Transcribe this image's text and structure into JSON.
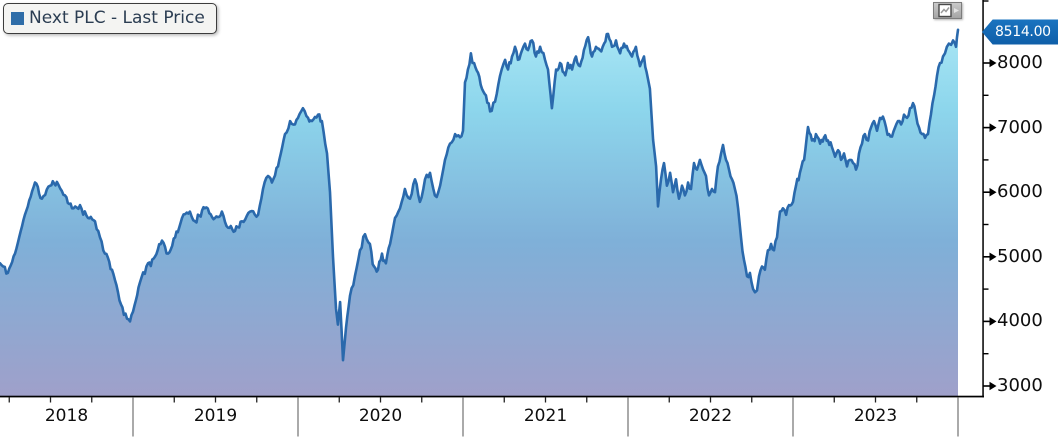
{
  "legend": {
    "series_label": "Next PLC - Last Price"
  },
  "toolbar": {
    "button": "chart-options"
  },
  "last_price_badge": {
    "value": "8514.00"
  },
  "colors": {
    "line": "#2a69ac",
    "fill_top": "#a9e6f5",
    "fill_upper": "#8dd6ec",
    "fill_mid": "#7fb0d8",
    "fill_bottom": "#9fa0ca",
    "badge_bg": "#1166b2",
    "legend_marker": "#2f6da8",
    "axis": "#000000"
  },
  "y_axis": {
    "major_ticks": [
      8000,
      7000,
      6000,
      5000,
      4000,
      3000
    ],
    "labels": [
      "8000",
      "7000",
      "6000",
      "5000",
      "4000",
      "3000"
    ],
    "minor_ticks": [
      9000,
      8500,
      7500,
      6500,
      5500,
      4500,
      3500
    ],
    "side": "right"
  },
  "x_axis": {
    "year_labels": [
      "2018",
      "2019",
      "2020",
      "2021",
      "2022",
      "2023"
    ],
    "minor_ticks_per_year": 4
  },
  "chart_data": {
    "type": "area",
    "title": "Next PLC - Last Price",
    "legend_position": "top-left",
    "grid": false,
    "ylim": [
      2860,
      8980
    ],
    "xlim_decimal_years": [
      2018.194,
      2024.0
    ],
    "last_price": 8514.0,
    "series": [
      {
        "name": "Next PLC - Last Price",
        "points_decimal_year_vs_pence": [
          [
            2018.194,
            4900
          ],
          [
            2018.242,
            4750
          ],
          [
            2018.285,
            5050
          ],
          [
            2018.345,
            5650
          ],
          [
            2018.406,
            6150
          ],
          [
            2018.448,
            5900
          ],
          [
            2018.497,
            6100
          ],
          [
            2018.539,
            6160
          ],
          [
            2018.588,
            5950
          ],
          [
            2018.63,
            5750
          ],
          [
            2018.679,
            5800
          ],
          [
            2018.727,
            5600
          ],
          [
            2018.77,
            5550
          ],
          [
            2018.8,
            5300
          ],
          [
            2018.83,
            5050
          ],
          [
            2018.873,
            4800
          ],
          [
            2018.909,
            4450
          ],
          [
            2018.945,
            4100
          ],
          [
            2018.982,
            4000
          ],
          [
            2019.0,
            4150
          ],
          [
            2019.042,
            4600
          ],
          [
            2019.091,
            4900
          ],
          [
            2019.133,
            5000
          ],
          [
            2019.176,
            5250
          ],
          [
            2019.212,
            5050
          ],
          [
            2019.255,
            5300
          ],
          [
            2019.297,
            5600
          ],
          [
            2019.345,
            5700
          ],
          [
            2019.376,
            5550
          ],
          [
            2019.436,
            5750
          ],
          [
            2019.497,
            5600
          ],
          [
            2019.539,
            5700
          ],
          [
            2019.576,
            5450
          ],
          [
            2019.618,
            5400
          ],
          [
            2019.661,
            5550
          ],
          [
            2019.709,
            5700
          ],
          [
            2019.758,
            5650
          ],
          [
            2019.788,
            6050
          ],
          [
            2019.818,
            6250
          ],
          [
            2019.842,
            6150
          ],
          [
            2019.879,
            6400
          ],
          [
            2019.921,
            6900
          ],
          [
            2019.952,
            7100
          ],
          [
            2019.982,
            7050
          ],
          [
            2020.0,
            7150
          ],
          [
            2020.03,
            7300
          ],
          [
            2020.061,
            7150
          ],
          [
            2020.085,
            7100
          ],
          [
            2020.121,
            7200
          ],
          [
            2020.145,
            7100
          ],
          [
            2020.176,
            6600
          ],
          [
            2020.194,
            6000
          ],
          [
            2020.212,
            5000
          ],
          [
            2020.23,
            4200
          ],
          [
            2020.242,
            3950
          ],
          [
            2020.255,
            4300
          ],
          [
            2020.273,
            3400
          ],
          [
            2020.291,
            3900
          ],
          [
            2020.315,
            4400
          ],
          [
            2020.345,
            4700
          ],
          [
            2020.376,
            5100
          ],
          [
            2020.406,
            5350
          ],
          [
            2020.436,
            5200
          ],
          [
            2020.461,
            4850
          ],
          [
            2020.485,
            4800
          ],
          [
            2020.509,
            5050
          ],
          [
            2020.533,
            4900
          ],
          [
            2020.558,
            5200
          ],
          [
            2020.588,
            5600
          ],
          [
            2020.618,
            5750
          ],
          [
            2020.648,
            6050
          ],
          [
            2020.679,
            5900
          ],
          [
            2020.709,
            6200
          ],
          [
            2020.739,
            5850
          ],
          [
            2020.77,
            6200
          ],
          [
            2020.8,
            6300
          ],
          [
            2020.83,
            5950
          ],
          [
            2020.861,
            6100
          ],
          [
            2020.891,
            6500
          ],
          [
            2020.921,
            6750
          ],
          [
            2020.952,
            6900
          ],
          [
            2020.982,
            6850
          ],
          [
            2021.0,
            6950
          ],
          [
            2021.012,
            7700
          ],
          [
            2021.03,
            7900
          ],
          [
            2021.048,
            8150
          ],
          [
            2021.067,
            8000
          ],
          [
            2021.091,
            7850
          ],
          [
            2021.115,
            7600
          ],
          [
            2021.139,
            7500
          ],
          [
            2021.164,
            7250
          ],
          [
            2021.194,
            7400
          ],
          [
            2021.224,
            7800
          ],
          [
            2021.255,
            8050
          ],
          [
            2021.273,
            7900
          ],
          [
            2021.297,
            8100
          ],
          [
            2021.315,
            8250
          ],
          [
            2021.333,
            8050
          ],
          [
            2021.358,
            8200
          ],
          [
            2021.376,
            8300
          ],
          [
            2021.394,
            8200
          ],
          [
            2021.418,
            8350
          ],
          [
            2021.442,
            8100
          ],
          [
            2021.467,
            8250
          ],
          [
            2021.497,
            8050
          ],
          [
            2021.515,
            7900
          ],
          [
            2021.539,
            7300
          ],
          [
            2021.564,
            7900
          ],
          [
            2021.588,
            8000
          ],
          [
            2021.612,
            7850
          ],
          [
            2021.636,
            8000
          ],
          [
            2021.661,
            7900
          ],
          [
            2021.685,
            8100
          ],
          [
            2021.709,
            7950
          ],
          [
            2021.733,
            8200
          ],
          [
            2021.758,
            8400
          ],
          [
            2021.782,
            8100
          ],
          [
            2021.806,
            8250
          ],
          [
            2021.83,
            8200
          ],
          [
            2021.855,
            8300
          ],
          [
            2021.879,
            8450
          ],
          [
            2021.903,
            8250
          ],
          [
            2021.927,
            8350
          ],
          [
            2021.952,
            8150
          ],
          [
            2021.976,
            8300
          ],
          [
            2022.0,
            8200
          ],
          [
            2022.024,
            8100
          ],
          [
            2022.048,
            8250
          ],
          [
            2022.073,
            7950
          ],
          [
            2022.097,
            8100
          ],
          [
            2022.121,
            7750
          ],
          [
            2022.133,
            7600
          ],
          [
            2022.152,
            6810
          ],
          [
            2022.17,
            6400
          ],
          [
            2022.182,
            5780
          ],
          [
            2022.2,
            6200
          ],
          [
            2022.218,
            6450
          ],
          [
            2022.236,
            6100
          ],
          [
            2022.255,
            6300
          ],
          [
            2022.273,
            6000
          ],
          [
            2022.291,
            6200
          ],
          [
            2022.309,
            5900
          ],
          [
            2022.327,
            6100
          ],
          [
            2022.345,
            5950
          ],
          [
            2022.364,
            6150
          ],
          [
            2022.382,
            6050
          ],
          [
            2022.4,
            6450
          ],
          [
            2022.418,
            6350
          ],
          [
            2022.436,
            6500
          ],
          [
            2022.455,
            6350
          ],
          [
            2022.473,
            6250
          ],
          [
            2022.491,
            5950
          ],
          [
            2022.509,
            6050
          ],
          [
            2022.527,
            6000
          ],
          [
            2022.545,
            6400
          ],
          [
            2022.564,
            6600
          ],
          [
            2022.576,
            6730
          ],
          [
            2022.594,
            6500
          ],
          [
            2022.612,
            6350
          ],
          [
            2022.63,
            6200
          ],
          [
            2022.648,
            6050
          ],
          [
            2022.667,
            5750
          ],
          [
            2022.685,
            5300
          ],
          [
            2022.703,
            4950
          ],
          [
            2022.721,
            4700
          ],
          [
            2022.739,
            4750
          ],
          [
            2022.758,
            4500
          ],
          [
            2022.77,
            4450
          ],
          [
            2022.782,
            4480
          ],
          [
            2022.794,
            4700
          ],
          [
            2022.812,
            4850
          ],
          [
            2022.83,
            4800
          ],
          [
            2022.848,
            5100
          ],
          [
            2022.867,
            5200
          ],
          [
            2022.885,
            5100
          ],
          [
            2022.903,
            5300
          ],
          [
            2022.921,
            5700
          ],
          [
            2022.939,
            5750
          ],
          [
            2022.958,
            5650
          ],
          [
            2022.976,
            5800
          ],
          [
            2023.0,
            5850
          ],
          [
            2023.018,
            6100
          ],
          [
            2023.042,
            6300
          ],
          [
            2023.067,
            6500
          ],
          [
            2023.091,
            7010
          ],
          [
            2023.115,
            6800
          ],
          [
            2023.139,
            6900
          ],
          [
            2023.164,
            6750
          ],
          [
            2023.188,
            6850
          ],
          [
            2023.212,
            6800
          ],
          [
            2023.236,
            6700
          ],
          [
            2023.255,
            6550
          ],
          [
            2023.273,
            6650
          ],
          [
            2023.291,
            6500
          ],
          [
            2023.309,
            6600
          ],
          [
            2023.327,
            6400
          ],
          [
            2023.345,
            6500
          ],
          [
            2023.364,
            6450
          ],
          [
            2023.382,
            6350
          ],
          [
            2023.4,
            6600
          ],
          [
            2023.418,
            6750
          ],
          [
            2023.436,
            6900
          ],
          [
            2023.455,
            6800
          ],
          [
            2023.473,
            7000
          ],
          [
            2023.491,
            7100
          ],
          [
            2023.509,
            6950
          ],
          [
            2023.527,
            7150
          ],
          [
            2023.545,
            7170
          ],
          [
            2023.564,
            7000
          ],
          [
            2023.582,
            6900
          ],
          [
            2023.6,
            6860
          ],
          [
            2023.618,
            7000
          ],
          [
            2023.636,
            7100
          ],
          [
            2023.655,
            7050
          ],
          [
            2023.673,
            7200
          ],
          [
            2023.691,
            7150
          ],
          [
            2023.709,
            7300
          ],
          [
            2023.727,
            7380
          ],
          [
            2023.745,
            7200
          ],
          [
            2023.764,
            7000
          ],
          [
            2023.782,
            6900
          ],
          [
            2023.8,
            6840
          ],
          [
            2023.818,
            6900
          ],
          [
            2023.836,
            7200
          ],
          [
            2023.855,
            7500
          ],
          [
            2023.873,
            7800
          ],
          [
            2023.891,
            8000
          ],
          [
            2023.909,
            8100
          ],
          [
            2023.921,
            8150
          ],
          [
            2023.933,
            8250
          ],
          [
            2023.945,
            8300
          ],
          [
            2023.958,
            8280
          ],
          [
            2023.97,
            8350
          ],
          [
            2023.982,
            8300
          ],
          [
            2023.988,
            8250
          ],
          [
            2023.994,
            8400
          ],
          [
            2024.0,
            8514
          ]
        ]
      }
    ]
  }
}
